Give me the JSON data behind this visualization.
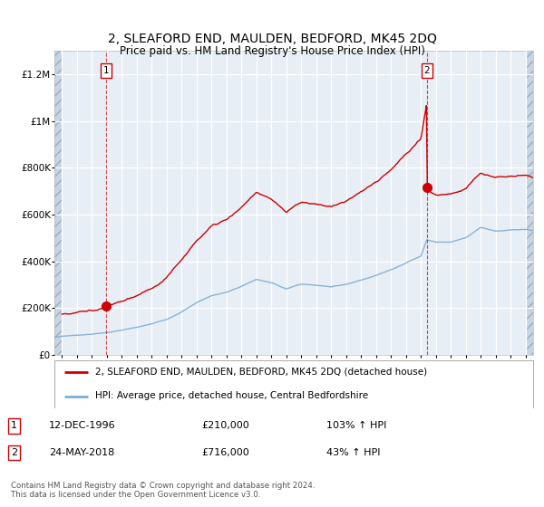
{
  "title": "2, SLEAFORD END, MAULDEN, BEDFORD, MK45 2DQ",
  "subtitle": "Price paid vs. HM Land Registry's House Price Index (HPI)",
  "legend_line1": "2, SLEAFORD END, MAULDEN, BEDFORD, MK45 2DQ (detached house)",
  "legend_line2": "HPI: Average price, detached house, Central Bedfordshire",
  "annotation1_label": "1",
  "annotation1_date": "12-DEC-1996",
  "annotation1_price": "£210,000",
  "annotation1_hpi": "103% ↑ HPI",
  "annotation2_label": "2",
  "annotation2_date": "24-MAY-2018",
  "annotation2_price": "£716,000",
  "annotation2_hpi": "43% ↑ HPI",
  "footer": "Contains HM Land Registry data © Crown copyright and database right 2024.\nThis data is licensed under the Open Government Licence v3.0.",
  "sale1_x": 1996.95,
  "sale1_y": 210000,
  "sale2_x": 2018.39,
  "sale2_y": 716000,
  "red_color": "#cc0000",
  "blue_color": "#7dadd4",
  "plot_bg": "#e8eef5",
  "grid_color": "#ffffff",
  "hatch_color": "#c8d4e0",
  "ylim": [
    0,
    1300000
  ],
  "xlim_left": 1993.5,
  "xlim_right": 2025.5
}
